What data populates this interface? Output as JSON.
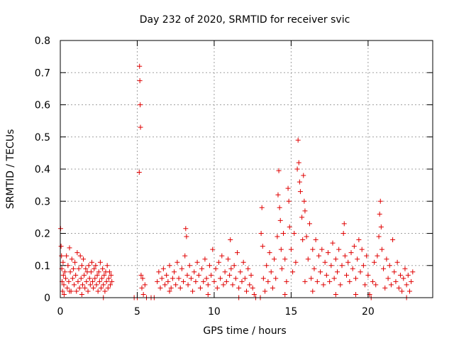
{
  "chart_data": {
    "type": "scatter",
    "title": "Day 232 of 2020, SRMTID for receiver svic",
    "xlabel": "GPS time / hours",
    "ylabel": "SRMTID / TECUs",
    "xlim": [
      0,
      24.2
    ],
    "ylim": [
      0,
      0.8
    ],
    "x_ticks": [
      0,
      5,
      10,
      15,
      20
    ],
    "y_ticks": [
      0,
      0.1,
      0.2,
      0.3,
      0.4,
      0.5,
      0.6,
      0.7,
      0.8
    ],
    "x_tick_labels": [
      "0",
      "5",
      "10",
      "15",
      "20"
    ],
    "y_tick_labels": [
      "0",
      "0.1",
      "0.2",
      "0.3",
      "0.4",
      "0.5",
      "0.6",
      "0.7",
      "0.8"
    ],
    "grid": true,
    "marker": "+",
    "color": "#e00000",
    "series": [
      {
        "name": "SRMTID",
        "points": [
          [
            0.02,
            0.215
          ],
          [
            0.05,
            0.16
          ],
          [
            0.08,
            0.13
          ],
          [
            0.1,
            0.09
          ],
          [
            0.12,
            0.05
          ],
          [
            0.15,
            0.02
          ],
          [
            0.18,
            0.11
          ],
          [
            0.2,
            0.07
          ],
          [
            0.23,
            0.04
          ],
          [
            0.25,
            0.01
          ],
          [
            0.3,
            0.08
          ],
          [
            0.35,
            0.06
          ],
          [
            0.4,
            0.13
          ],
          [
            0.45,
            0.03
          ],
          [
            0.5,
            0.1
          ],
          [
            0.55,
            0.05
          ],
          [
            0.6,
            0.155
          ],
          [
            0.65,
            0.08
          ],
          [
            0.7,
            0.02
          ],
          [
            0.75,
            0.12
          ],
          [
            0.8,
            0.06
          ],
          [
            0.85,
            0.09
          ],
          [
            0.9,
            0.04
          ],
          [
            0.95,
            0.11
          ],
          [
            1.0,
            0.07
          ],
          [
            1.05,
            0.02
          ],
          [
            1.1,
            0.14
          ],
          [
            1.15,
            0.05
          ],
          [
            1.2,
            0.09
          ],
          [
            1.25,
            0.03
          ],
          [
            1.3,
            0.13
          ],
          [
            1.35,
            0.06
          ],
          [
            1.4,
            0.1
          ],
          [
            1.45,
            0.04
          ],
          [
            1.5,
            0.12
          ],
          [
            1.55,
            0.07
          ],
          [
            1.6,
            0.03
          ],
          [
            1.65,
            0.09
          ],
          [
            1.7,
            0.05
          ],
          [
            1.75,
            0.08
          ],
          [
            1.8,
            0.02
          ],
          [
            1.85,
            0.1
          ],
          [
            1.9,
            0.06
          ],
          [
            1.95,
            0.04
          ],
          [
            2.0,
            0.08
          ],
          [
            2.05,
            0.11
          ],
          [
            2.1,
            0.05
          ],
          [
            2.15,
            0.03
          ],
          [
            2.2,
            0.09
          ],
          [
            2.25,
            0.06
          ],
          [
            2.3,
            0.1
          ],
          [
            2.35,
            0.04
          ],
          [
            2.4,
            0.07
          ],
          [
            2.45,
            0.02
          ],
          [
            2.5,
            0.08
          ],
          [
            2.55,
            0.05
          ],
          [
            2.6,
            0.11
          ],
          [
            2.65,
            0.03
          ],
          [
            2.7,
            0.06
          ],
          [
            2.75,
            0.09
          ],
          [
            2.8,
            0.04
          ],
          [
            2.85,
            0.07
          ],
          [
            2.9,
            0.02
          ],
          [
            2.95,
            0.08
          ],
          [
            3.0,
            0.05
          ],
          [
            3.05,
            0.1
          ],
          [
            3.1,
            0.03
          ],
          [
            3.15,
            0.06
          ],
          [
            3.2,
            0.08
          ],
          [
            3.25,
            0.04
          ],
          [
            3.3,
            0.07
          ],
          [
            3.35,
            0.05
          ],
          [
            4.8,
            0.0
          ],
          [
            5.0,
            0.0
          ],
          [
            5.15,
            0.72
          ],
          [
            5.17,
            0.675
          ],
          [
            5.19,
            0.6
          ],
          [
            5.21,
            0.53
          ],
          [
            5.13,
            0.39
          ],
          [
            5.25,
            0.07
          ],
          [
            5.3,
            0.03
          ],
          [
            5.35,
            0.06
          ],
          [
            5.4,
            0.01
          ],
          [
            5.5,
            0.04
          ],
          [
            5.6,
            0.0
          ],
          [
            5.9,
            0.0
          ],
          [
            6.1,
            0.0
          ],
          [
            6.3,
            0.05
          ],
          [
            6.4,
            0.08
          ],
          [
            6.5,
            0.03
          ],
          [
            6.6,
            0.06
          ],
          [
            6.7,
            0.09
          ],
          [
            6.8,
            0.04
          ],
          [
            6.9,
            0.07
          ],
          [
            7.0,
            0.05
          ],
          [
            7.1,
            0.1
          ],
          [
            7.2,
            0.03
          ],
          [
            7.3,
            0.06
          ],
          [
            7.4,
            0.08
          ],
          [
            7.5,
            0.04
          ],
          [
            7.6,
            0.11
          ],
          [
            7.7,
            0.06
          ],
          [
            7.8,
            0.03
          ],
          [
            7.9,
            0.09
          ],
          [
            8.0,
            0.05
          ],
          [
            8.1,
            0.13
          ],
          [
            8.15,
            0.215
          ],
          [
            8.2,
            0.19
          ],
          [
            8.25,
            0.07
          ],
          [
            8.3,
            0.04
          ],
          [
            8.4,
            0.1
          ],
          [
            8.5,
            0.06
          ],
          [
            8.6,
            0.02
          ],
          [
            8.7,
            0.08
          ],
          [
            8.8,
            0.05
          ],
          [
            8.9,
            0.11
          ],
          [
            9.0,
            0.07
          ],
          [
            9.1,
            0.03
          ],
          [
            9.2,
            0.09
          ],
          [
            9.3,
            0.05
          ],
          [
            9.4,
            0.12
          ],
          [
            9.5,
            0.06
          ],
          [
            9.6,
            0.04
          ],
          [
            9.7,
            0.1
          ],
          [
            9.8,
            0.07
          ],
          [
            9.9,
            0.15
          ],
          [
            10.0,
            0.05
          ],
          [
            10.1,
            0.09
          ],
          [
            10.2,
            0.03
          ],
          [
            10.3,
            0.11
          ],
          [
            10.4,
            0.06
          ],
          [
            10.5,
            0.13
          ],
          [
            10.6,
            0.04
          ],
          [
            10.7,
            0.08
          ],
          [
            10.8,
            0.05
          ],
          [
            10.9,
            0.12
          ],
          [
            11.0,
            0.07
          ],
          [
            11.05,
            0.18
          ],
          [
            11.1,
            0.09
          ],
          [
            11.2,
            0.04
          ],
          [
            11.3,
            0.1
          ],
          [
            11.4,
            0.06
          ],
          [
            11.5,
            0.14
          ],
          [
            11.6,
            0.03
          ],
          [
            11.7,
            0.08
          ],
          [
            11.8,
            0.05
          ],
          [
            11.9,
            0.11
          ],
          [
            12.0,
            0.06
          ],
          [
            12.1,
            0.02
          ],
          [
            12.2,
            0.09
          ],
          [
            12.3,
            0.04
          ],
          [
            12.4,
            0.07
          ],
          [
            12.5,
            0.03
          ],
          [
            12.6,
            0.01
          ],
          [
            13.0,
            0.0
          ],
          [
            13.05,
            0.2
          ],
          [
            13.1,
            0.28
          ],
          [
            13.15,
            0.16
          ],
          [
            13.2,
            0.06
          ],
          [
            13.3,
            0.02
          ],
          [
            13.4,
            0.1
          ],
          [
            13.5,
            0.05
          ],
          [
            13.6,
            0.14
          ],
          [
            13.7,
            0.08
          ],
          [
            13.8,
            0.03
          ],
          [
            13.9,
            0.12
          ],
          [
            14.0,
            0.06
          ],
          [
            14.1,
            0.19
          ],
          [
            14.15,
            0.32
          ],
          [
            14.2,
            0.395
          ],
          [
            14.25,
            0.28
          ],
          [
            14.3,
            0.24
          ],
          [
            14.35,
            0.15
          ],
          [
            14.4,
            0.09
          ],
          [
            14.5,
            0.2
          ],
          [
            14.6,
            0.12
          ],
          [
            14.7,
            0.05
          ],
          [
            14.8,
            0.34
          ],
          [
            14.85,
            0.3
          ],
          [
            14.9,
            0.22
          ],
          [
            15.0,
            0.15
          ],
          [
            15.1,
            0.08
          ],
          [
            15.2,
            0.2
          ],
          [
            15.3,
            0.11
          ],
          [
            15.4,
            0.4
          ],
          [
            15.45,
            0.49
          ],
          [
            15.5,
            0.42
          ],
          [
            15.55,
            0.36
          ],
          [
            15.6,
            0.33
          ],
          [
            15.7,
            0.25
          ],
          [
            15.75,
            0.18
          ],
          [
            15.8,
            0.38
          ],
          [
            15.85,
            0.3
          ],
          [
            15.9,
            0.27
          ],
          [
            16.0,
            0.19
          ],
          [
            16.1,
            0.12
          ],
          [
            16.2,
            0.23
          ],
          [
            16.3,
            0.06
          ],
          [
            16.4,
            0.15
          ],
          [
            16.5,
            0.09
          ],
          [
            16.6,
            0.18
          ],
          [
            16.7,
            0.05
          ],
          [
            16.8,
            0.13
          ],
          [
            16.9,
            0.08
          ],
          [
            17.0,
            0.15
          ],
          [
            17.1,
            0.04
          ],
          [
            17.2,
            0.11
          ],
          [
            17.3,
            0.07
          ],
          [
            17.4,
            0.14
          ],
          [
            17.5,
            0.05
          ],
          [
            17.6,
            0.1
          ],
          [
            17.7,
            0.17
          ],
          [
            17.8,
            0.06
          ],
          [
            17.9,
            0.12
          ],
          [
            18.0,
            0.08
          ],
          [
            18.1,
            0.15
          ],
          [
            18.2,
            0.04
          ],
          [
            18.3,
            0.1
          ],
          [
            18.4,
            0.2
          ],
          [
            18.45,
            0.23
          ],
          [
            18.5,
            0.13
          ],
          [
            18.6,
            0.07
          ],
          [
            18.7,
            0.11
          ],
          [
            18.8,
            0.05
          ],
          [
            18.9,
            0.14
          ],
          [
            19.0,
            0.09
          ],
          [
            19.1,
            0.16
          ],
          [
            19.2,
            0.06
          ],
          [
            19.3,
            0.12
          ],
          [
            19.4,
            0.18
          ],
          [
            19.5,
            0.08
          ],
          [
            19.6,
            0.15
          ],
          [
            19.7,
            0.1
          ],
          [
            19.8,
            0.04
          ],
          [
            19.9,
            0.13
          ],
          [
            20.0,
            0.07
          ],
          [
            20.1,
            0.01
          ],
          [
            20.2,
            0.0
          ],
          [
            20.3,
            0.05
          ],
          [
            20.4,
            0.11
          ],
          [
            20.5,
            0.04
          ],
          [
            20.6,
            0.13
          ],
          [
            20.7,
            0.19
          ],
          [
            20.75,
            0.26
          ],
          [
            20.8,
            0.3
          ],
          [
            20.85,
            0.22
          ],
          [
            20.9,
            0.15
          ],
          [
            21.0,
            0.09
          ],
          [
            21.1,
            0.03
          ],
          [
            21.2,
            0.12
          ],
          [
            21.3,
            0.06
          ],
          [
            21.4,
            0.1
          ],
          [
            21.5,
            0.04
          ],
          [
            21.6,
            0.18
          ],
          [
            21.7,
            0.08
          ],
          [
            21.8,
            0.05
          ],
          [
            21.9,
            0.11
          ],
          [
            22.0,
            0.03
          ],
          [
            22.1,
            0.07
          ],
          [
            22.2,
            0.02
          ],
          [
            22.3,
            0.06
          ],
          [
            22.4,
            0.09
          ],
          [
            22.5,
            0.04
          ],
          [
            22.6,
            0.07
          ],
          [
            22.7,
            0.02
          ],
          [
            22.8,
            0.05
          ],
          [
            22.9,
            0.08
          ],
          [
            0.6,
            0.02
          ],
          [
            1.4,
            0.01
          ],
          [
            2.8,
            0.0
          ],
          [
            9.6,
            0.01
          ],
          [
            11.6,
            0.0
          ],
          [
            12.7,
            0.0
          ],
          [
            16.4,
            0.02
          ],
          [
            17.9,
            0.01
          ],
          [
            19.2,
            0.01
          ],
          [
            22.5,
            0.0
          ],
          [
            14.6,
            0.01
          ],
          [
            15.9,
            0.05
          ],
          [
            7.1,
            0.02
          ]
        ]
      }
    ]
  }
}
